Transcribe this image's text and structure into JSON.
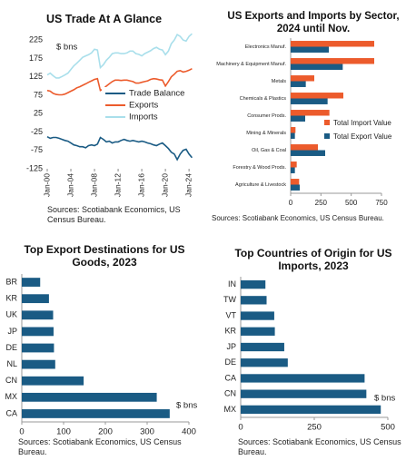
{
  "chart_data": [
    {
      "type": "line",
      "title": "US Trade At A Glance",
      "annotation": "$ bns",
      "source": "Sources: Scotiabank Economics, US Census Bureau.",
      "x": [
        "2000-01",
        "2000-07",
        "2001-01",
        "2001-07",
        "2002-01",
        "2002-07",
        "2003-01",
        "2003-07",
        "2004-01",
        "2004-07",
        "2005-01",
        "2005-07",
        "2006-01",
        "2006-07",
        "2007-01",
        "2007-07",
        "2008-01",
        "2008-07",
        "2009-01",
        "2009-07",
        "2010-01",
        "2010-07",
        "2011-01",
        "2011-07",
        "2012-01",
        "2012-07",
        "2013-01",
        "2013-07",
        "2014-01",
        "2014-07",
        "2015-01",
        "2015-07",
        "2016-01",
        "2016-07",
        "2017-01",
        "2017-07",
        "2018-01",
        "2018-07",
        "2019-01",
        "2019-07",
        "2020-01",
        "2020-07",
        "2021-01",
        "2021-07",
        "2022-01",
        "2022-07",
        "2023-01",
        "2023-07",
        "2024-01",
        "2024-07"
      ],
      "xlim": [
        "2000-01",
        "2024-10"
      ],
      "xticks": [
        {
          "value": "2000-01",
          "label": "Jan-00"
        },
        {
          "value": "2004-01",
          "label": "Jan-04"
        },
        {
          "value": "2008-01",
          "label": "Jan-08"
        },
        {
          "value": "2012-01",
          "label": "Jan-12"
        },
        {
          "value": "2016-01",
          "label": "Jan-16"
        },
        {
          "value": "2020-01",
          "label": "Jan-20"
        },
        {
          "value": "2024-01",
          "label": "Jan-24"
        }
      ],
      "ylim": [
        -125,
        250
      ],
      "yticks": [
        225,
        175,
        125,
        75,
        25,
        -25,
        -75,
        -125
      ],
      "series": [
        {
          "name": "Trade Balance",
          "color": "#1a5b84",
          "values": [
            -38,
            -42,
            -40,
            -40,
            -42,
            -45,
            -48,
            -50,
            -55,
            -60,
            -62,
            -65,
            -65,
            -68,
            -62,
            -60,
            -62,
            -58,
            -40,
            -45,
            -52,
            -50,
            -55,
            -52,
            -52,
            -48,
            -45,
            -48,
            -50,
            -48,
            -50,
            -52,
            -50,
            -52,
            -55,
            -57,
            -60,
            -62,
            -58,
            -55,
            -62,
            -70,
            -80,
            -85,
            -100,
            -85,
            -75,
            -72,
            -85,
            -95
          ]
        },
        {
          "name": "Exports",
          "color": "#ec5b2c",
          "values": [
            88,
            86,
            80,
            77,
            76,
            76,
            78,
            82,
            86,
            90,
            95,
            98,
            102,
            106,
            110,
            114,
            118,
            120,
            88,
            92,
            100,
            106,
            112,
            116,
            116,
            115,
            116,
            116,
            114,
            112,
            108,
            108,
            110,
            112,
            114,
            118,
            120,
            119,
            117,
            116,
            100,
            112,
            125,
            132,
            140,
            142,
            138,
            140,
            143,
            147
          ]
        },
        {
          "name": "Imports",
          "color": "#a9dfeb",
          "values": [
            130,
            135,
            128,
            122,
            122,
            126,
            130,
            135,
            145,
            155,
            162,
            170,
            178,
            182,
            185,
            190,
            200,
            198,
            150,
            158,
            170,
            178,
            188,
            190,
            190,
            188,
            188,
            190,
            195,
            195,
            188,
            186,
            182,
            188,
            192,
            196,
            202,
            205,
            200,
            198,
            185,
            195,
            215,
            225,
            240,
            235,
            225,
            222,
            235,
            242
          ]
        }
      ]
    },
    {
      "type": "bar",
      "orientation": "horizontal",
      "title": "US Exports and Imports by Sector, 2024 until Nov.",
      "source": "Sources: Scotiabank Economics, US Census Bureau.",
      "categories": [
        "Electronics Manuf.",
        "Machinery & Equipment Manuf.",
        "Metals",
        "Chemicals & Plastics",
        "Consumer Prods.",
        "Mining & Minerals",
        "Oil, Gas & Coal",
        "Forestry & Wood Prods.",
        "Agriculture & Livestock"
      ],
      "xlim": [
        0,
        750
      ],
      "xticks": [
        0,
        250,
        500,
        750
      ],
      "series": [
        {
          "name": "Total Import Value",
          "color": "#ec5b2c",
          "values": [
            690,
            690,
            195,
            435,
            320,
            40,
            225,
            50,
            70
          ]
        },
        {
          "name": "Total Export Value",
          "color": "#1a5b84",
          "values": [
            315,
            430,
            125,
            305,
            120,
            35,
            285,
            35,
            75
          ]
        }
      ]
    },
    {
      "type": "bar",
      "orientation": "horizontal",
      "title": "Top Export Destinations for US Goods, 2023",
      "annotation": "$ bns",
      "source": "Sources: Scotiabank Economics, US Census Bureau.",
      "categories": [
        "BR",
        "KR",
        "UK",
        "JP",
        "DE",
        "NL",
        "CN",
        "MX",
        "CA"
      ],
      "values": [
        44,
        65,
        75,
        76,
        77,
        80,
        148,
        323,
        354
      ],
      "color": "#1a5b84",
      "xlim": [
        0,
        400
      ],
      "xticks": [
        0,
        100,
        200,
        300,
        400
      ]
    },
    {
      "type": "bar",
      "orientation": "horizontal",
      "title": "Top Countries of Origin for US Imports, 2023",
      "annotation": "$ bns",
      "source": "Sources: Scotiabank Economics, US Census Bureau.",
      "categories": [
        "IN",
        "TW",
        "VT",
        "KR",
        "JP",
        "DE",
        "CA",
        "CN",
        "MX"
      ],
      "values": [
        84,
        88,
        114,
        116,
        148,
        160,
        421,
        427,
        476
      ],
      "color": "#1a5b84",
      "xlim": [
        0,
        500
      ],
      "xticks": [
        0,
        250,
        500
      ]
    }
  ]
}
